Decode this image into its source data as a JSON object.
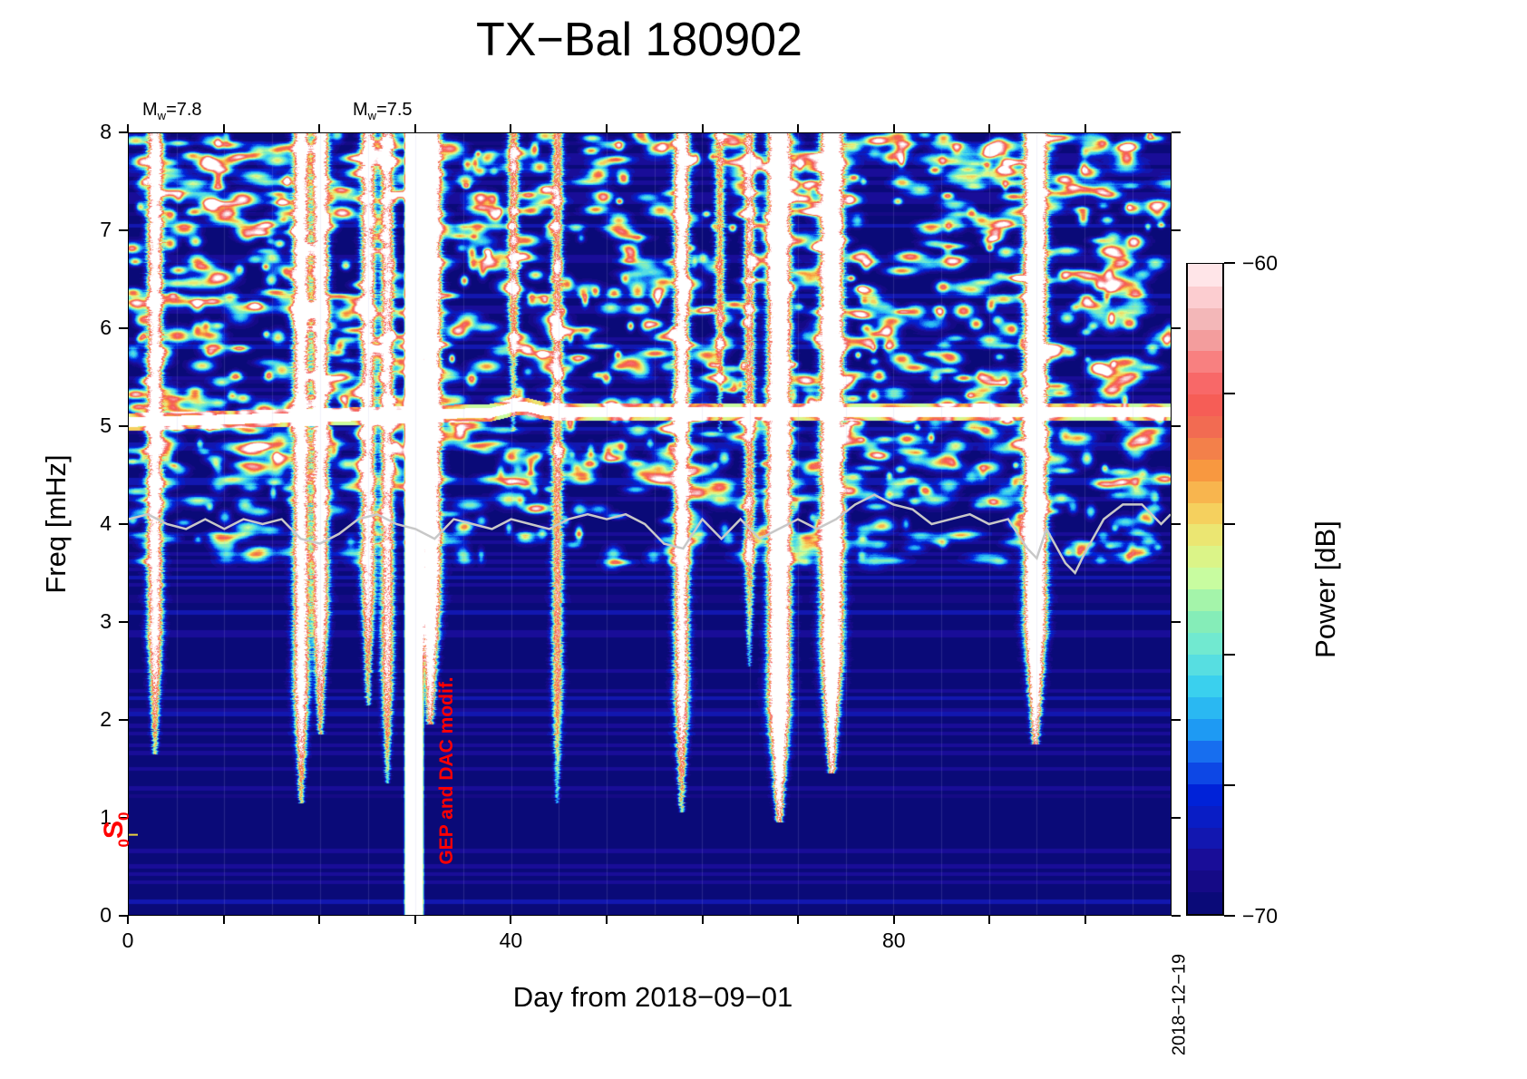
{
  "chart_data": {
    "type": "heatmap",
    "title": "TX−Bal 180902",
    "xlabel": "Day from 2018−09−01",
    "ylabel": "Freq [mHz]",
    "xlim": [
      0,
      109
    ],
    "ylim": [
      0,
      8
    ],
    "x_ticks": [
      0,
      40,
      80
    ],
    "y_ticks": [
      0,
      1,
      2,
      3,
      4,
      5,
      6,
      7,
      8
    ],
    "end_date_label": "2018−12−19",
    "colorbar": {
      "label": "Power [dB]",
      "range": [
        -70,
        -60
      ],
      "tick_labels": [
        "−60",
        "−70"
      ],
      "levels": 30,
      "colormap": [
        "#0a0a78",
        "#1c0a90",
        "#0f1ab8",
        "#0022d8",
        "#1560ee",
        "#20a8f4",
        "#3ad0ee",
        "#6ae8d8",
        "#8ceeb0",
        "#c8fca0",
        "#e8ee78",
        "#f8c858",
        "#f89840",
        "#f07050",
        "#f85858",
        "#f88080",
        "#f0b0b0",
        "#ffd4d8",
        "#ffffff"
      ]
    },
    "annotations": {
      "earthquakes": [
        {
          "day": 0,
          "prefix": "M",
          "sub": "w",
          "text": "=7.8"
        },
        {
          "day": 20,
          "prefix": "M",
          "sub": "w",
          "text": "=7.5"
        }
      ],
      "mode_label": {
        "pre": "0",
        "main": "S",
        "sub": "0",
        "freq": 0.82
      },
      "note": {
        "text": "GEP and DAC modif.",
        "day": 33
      }
    },
    "hum_line_mHz": 5.1,
    "events": [
      {
        "day": 2.7,
        "fmin": 1.7,
        "strength": 1.0,
        "sat": false
      },
      {
        "day": 18.0,
        "fmin": 1.2,
        "strength": 1.1,
        "sat": false
      },
      {
        "day": 20.0,
        "fmin": 1.9,
        "strength": 1.1,
        "sat": false
      },
      {
        "day": 25.0,
        "fmin": 2.2,
        "strength": 0.9,
        "sat": false
      },
      {
        "day": 27.0,
        "fmin": 1.4,
        "strength": 0.8,
        "sat": false
      },
      {
        "day": 29.8,
        "fmin": 0.0,
        "strength": 3.0,
        "sat": true
      },
      {
        "day": 31.5,
        "fmin": 2.0,
        "strength": 1.6,
        "sat": false
      },
      {
        "day": 40.2,
        "fmin": 5.0,
        "strength": 0.6,
        "sat": false
      },
      {
        "day": 44.8,
        "fmin": 1.2,
        "strength": 0.6,
        "sat": false
      },
      {
        "day": 57.8,
        "fmin": 1.1,
        "strength": 1.0,
        "sat": false
      },
      {
        "day": 61.8,
        "fmin": 5.0,
        "strength": 0.5,
        "sat": false
      },
      {
        "day": 64.9,
        "fmin": 2.6,
        "strength": 0.6,
        "sat": false
      },
      {
        "day": 68.0,
        "fmin": 1.0,
        "strength": 1.8,
        "sat": false
      },
      {
        "day": 73.5,
        "fmin": 1.5,
        "strength": 1.8,
        "sat": false
      },
      {
        "day": 94.8,
        "fmin": 1.8,
        "strength": 1.8,
        "sat": false
      }
    ],
    "gray_curve": {
      "days": [
        0,
        2,
        4,
        6,
        8,
        10,
        12,
        14,
        16,
        18,
        20,
        22,
        24,
        26,
        28,
        30,
        32,
        34,
        36,
        38,
        40,
        42,
        44,
        46,
        48,
        50,
        52,
        54,
        56,
        58,
        60,
        62,
        64,
        66,
        68,
        70,
        72,
        74,
        76,
        78,
        80,
        82,
        84,
        86,
        88,
        90,
        92,
        94,
        95,
        96,
        98,
        99,
        100,
        102,
        104,
        106,
        108,
        109
      ],
      "mHz": [
        4.05,
        4.1,
        4.0,
        3.95,
        4.05,
        3.95,
        4.05,
        4.0,
        4.05,
        3.85,
        3.8,
        3.9,
        4.05,
        4.1,
        4.0,
        3.95,
        3.85,
        4.05,
        4.0,
        3.95,
        4.05,
        4.0,
        3.95,
        4.05,
        4.1,
        4.05,
        4.1,
        4.0,
        3.8,
        3.75,
        4.05,
        3.85,
        4.05,
        3.85,
        3.95,
        4.05,
        3.95,
        4.05,
        4.2,
        4.3,
        4.2,
        4.15,
        4.0,
        4.05,
        4.1,
        4.0,
        4.05,
        3.75,
        3.65,
        3.95,
        3.6,
        3.5,
        3.7,
        4.05,
        4.2,
        4.2,
        4.0,
        4.1
      ]
    }
  }
}
